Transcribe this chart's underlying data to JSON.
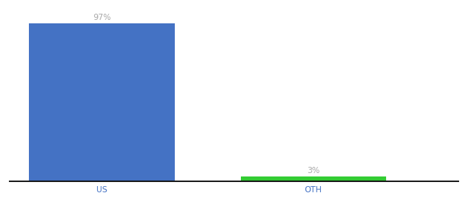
{
  "categories": [
    "US",
    "OTH"
  ],
  "values": [
    97,
    3
  ],
  "bar_colors": [
    "#4472c4",
    "#33cc33"
  ],
  "label_texts": [
    "97%",
    "3%"
  ],
  "label_color": "#aaaaaa",
  "ylim": [
    0,
    105
  ],
  "background_color": "#ffffff",
  "axis_line_color": "#111111",
  "tick_label_color": "#4472c4",
  "label_fontsize": 8.5,
  "tick_fontsize": 8.5,
  "bar_width": 0.55,
  "x_positions": [
    0.35,
    1.15
  ]
}
